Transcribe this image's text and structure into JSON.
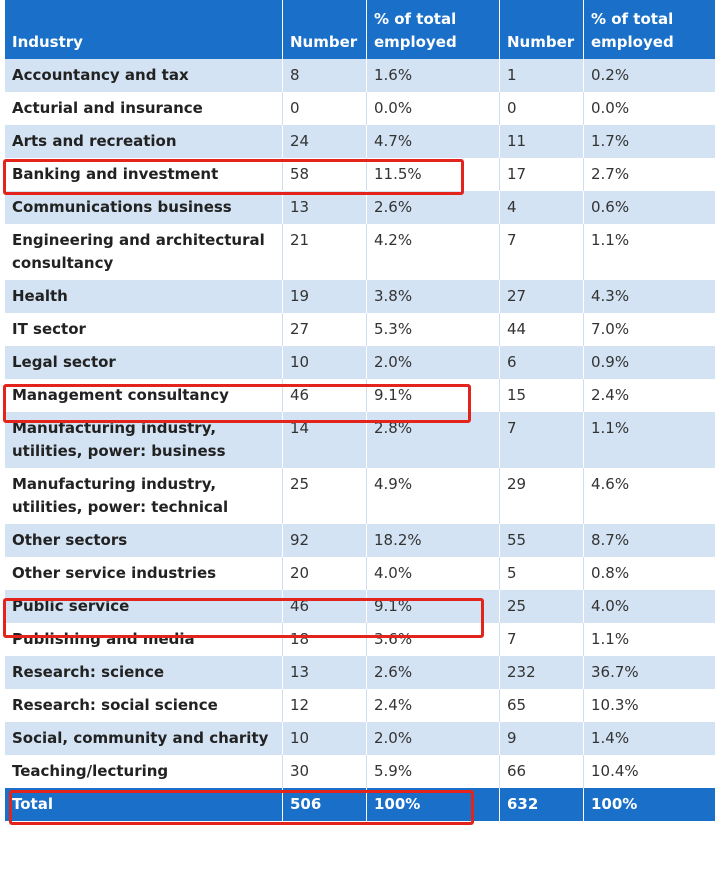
{
  "headers": [
    "Industry",
    "Number",
    "% of total employed",
    "Number",
    "% of total employed"
  ],
  "rows": [
    [
      "Accountancy and tax",
      "8",
      "1.6%",
      "1",
      "0.2%"
    ],
    [
      "Acturial and insurance",
      "0",
      "0.0%",
      "0",
      "0.0%"
    ],
    [
      "Arts and recreation",
      "24",
      "4.7%",
      "11",
      "1.7%"
    ],
    [
      "Banking and investment",
      "58",
      "11.5%",
      "17",
      "2.7%"
    ],
    [
      "Communications business",
      "13",
      "2.6%",
      "4",
      "0.6%"
    ],
    [
      "Engineering and architectural consultancy",
      "21",
      "4.2%",
      "7",
      "1.1%"
    ],
    [
      "Health",
      "19",
      "3.8%",
      "27",
      "4.3%"
    ],
    [
      "IT sector",
      "27",
      "5.3%",
      "44",
      "7.0%"
    ],
    [
      "Legal sector",
      "10",
      "2.0%",
      "6",
      "0.9%"
    ],
    [
      "Management consultancy",
      "46",
      "9.1%",
      "15",
      "2.4%"
    ],
    [
      "Manufacturing industry, utilities, power: business",
      "14",
      "2.8%",
      "7",
      "1.1%"
    ],
    [
      "Manufacturing industry, utilities, power: technical",
      "25",
      "4.9%",
      "29",
      "4.6%"
    ],
    [
      "Other sectors",
      "92",
      "18.2%",
      "55",
      "8.7%"
    ],
    [
      "Other service industries",
      "20",
      "4.0%",
      "5",
      "0.8%"
    ],
    [
      "Public service",
      "46",
      "9.1%",
      "25",
      "4.0%"
    ],
    [
      "Publishing and media",
      "18",
      "3.6%",
      "7",
      "1.1%"
    ],
    [
      "Research: science",
      "13",
      "2.6%",
      "232",
      "36.7%"
    ],
    [
      "Research: social science",
      "12",
      "2.4%",
      "65",
      "10.3%"
    ],
    [
      "Social, community and charity",
      "10",
      "2.0%",
      "9",
      "1.4%"
    ],
    [
      "Teaching/lecturing",
      "30",
      "5.9%",
      "66",
      "10.4%"
    ]
  ],
  "total": [
    "Total",
    "506",
    "100%",
    "632",
    "100%"
  ],
  "highlight_color": "#e3241c",
  "header_color": "#1a70c8",
  "stripe_color": "#d3e3f3"
}
